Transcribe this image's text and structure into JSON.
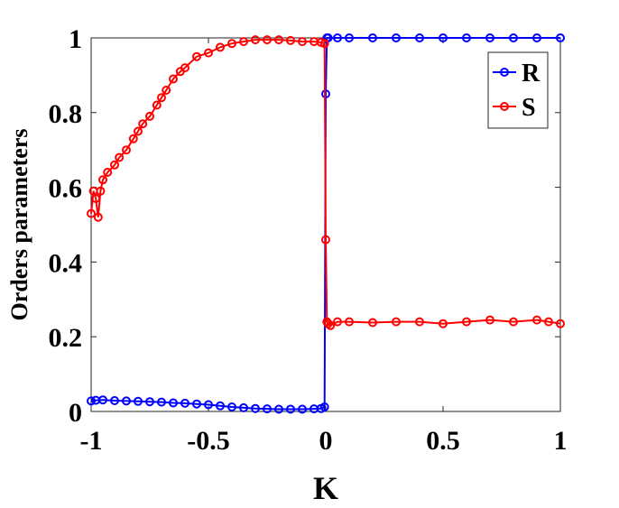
{
  "chart_data": {
    "type": "line",
    "title": "",
    "xlabel": "K",
    "ylabel": "Orders parameters",
    "xlim": [
      -1,
      1
    ],
    "ylim": [
      0,
      1
    ],
    "xticks": [
      -1,
      -0.5,
      0,
      0.5,
      1
    ],
    "xtick_labels": [
      "-1",
      "-0.5",
      "0",
      "0.5",
      "1"
    ],
    "yticks": [
      0,
      0.2,
      0.4,
      0.6,
      0.8,
      1
    ],
    "ytick_labels": [
      "0",
      "0.2",
      "0.4",
      "0.6",
      "0.8",
      "1"
    ],
    "grid": false,
    "legend_position": "top-right",
    "series": [
      {
        "name": "R",
        "color": "#0000ff",
        "marker": "circle",
        "x": [
          -1,
          -0.98,
          -0.95,
          -0.9,
          -0.85,
          -0.8,
          -0.75,
          -0.7,
          -0.65,
          -0.6,
          -0.55,
          -0.5,
          -0.45,
          -0.4,
          -0.35,
          -0.3,
          -0.25,
          -0.2,
          -0.15,
          -0.1,
          -0.05,
          -0.02,
          -0.005,
          0.0,
          0.005,
          0.01,
          0.05,
          0.1,
          0.2,
          0.3,
          0.4,
          0.5,
          0.6,
          0.7,
          0.8,
          0.9,
          1.0
        ],
        "y": [
          0.028,
          0.03,
          0.031,
          0.029,
          0.028,
          0.027,
          0.026,
          0.025,
          0.023,
          0.022,
          0.02,
          0.018,
          0.015,
          0.012,
          0.01,
          0.008,
          0.007,
          0.006,
          0.006,
          0.006,
          0.007,
          0.008,
          0.012,
          0.85,
          1.0,
          1.0,
          1.0,
          1.0,
          1.0,
          1.0,
          1.0,
          1.0,
          1.0,
          1.0,
          1.0,
          1.0,
          1.0
        ]
      },
      {
        "name": "S",
        "color": "#ff0000",
        "marker": "circle",
        "x": [
          -1,
          -0.99,
          -0.98,
          -0.97,
          -0.96,
          -0.95,
          -0.93,
          -0.9,
          -0.88,
          -0.85,
          -0.82,
          -0.8,
          -0.78,
          -0.75,
          -0.72,
          -0.7,
          -0.68,
          -0.65,
          -0.62,
          -0.6,
          -0.55,
          -0.5,
          -0.45,
          -0.4,
          -0.35,
          -0.3,
          -0.25,
          -0.2,
          -0.15,
          -0.1,
          -0.05,
          -0.02,
          -0.005,
          0.0,
          0.005,
          0.01,
          0.02,
          0.05,
          0.1,
          0.2,
          0.3,
          0.4,
          0.5,
          0.6,
          0.7,
          0.8,
          0.9,
          0.95,
          1.0
        ],
        "y": [
          0.53,
          0.59,
          0.57,
          0.52,
          0.59,
          0.62,
          0.64,
          0.66,
          0.68,
          0.7,
          0.73,
          0.75,
          0.77,
          0.79,
          0.82,
          0.84,
          0.86,
          0.89,
          0.91,
          0.92,
          0.95,
          0.96,
          0.975,
          0.985,
          0.99,
          0.995,
          0.995,
          0.995,
          0.993,
          0.99,
          0.99,
          0.988,
          0.985,
          0.46,
          0.24,
          0.235,
          0.23,
          0.24,
          0.24,
          0.238,
          0.24,
          0.24,
          0.235,
          0.24,
          0.245,
          0.24,
          0.245,
          0.24,
          0.235
        ]
      }
    ]
  }
}
